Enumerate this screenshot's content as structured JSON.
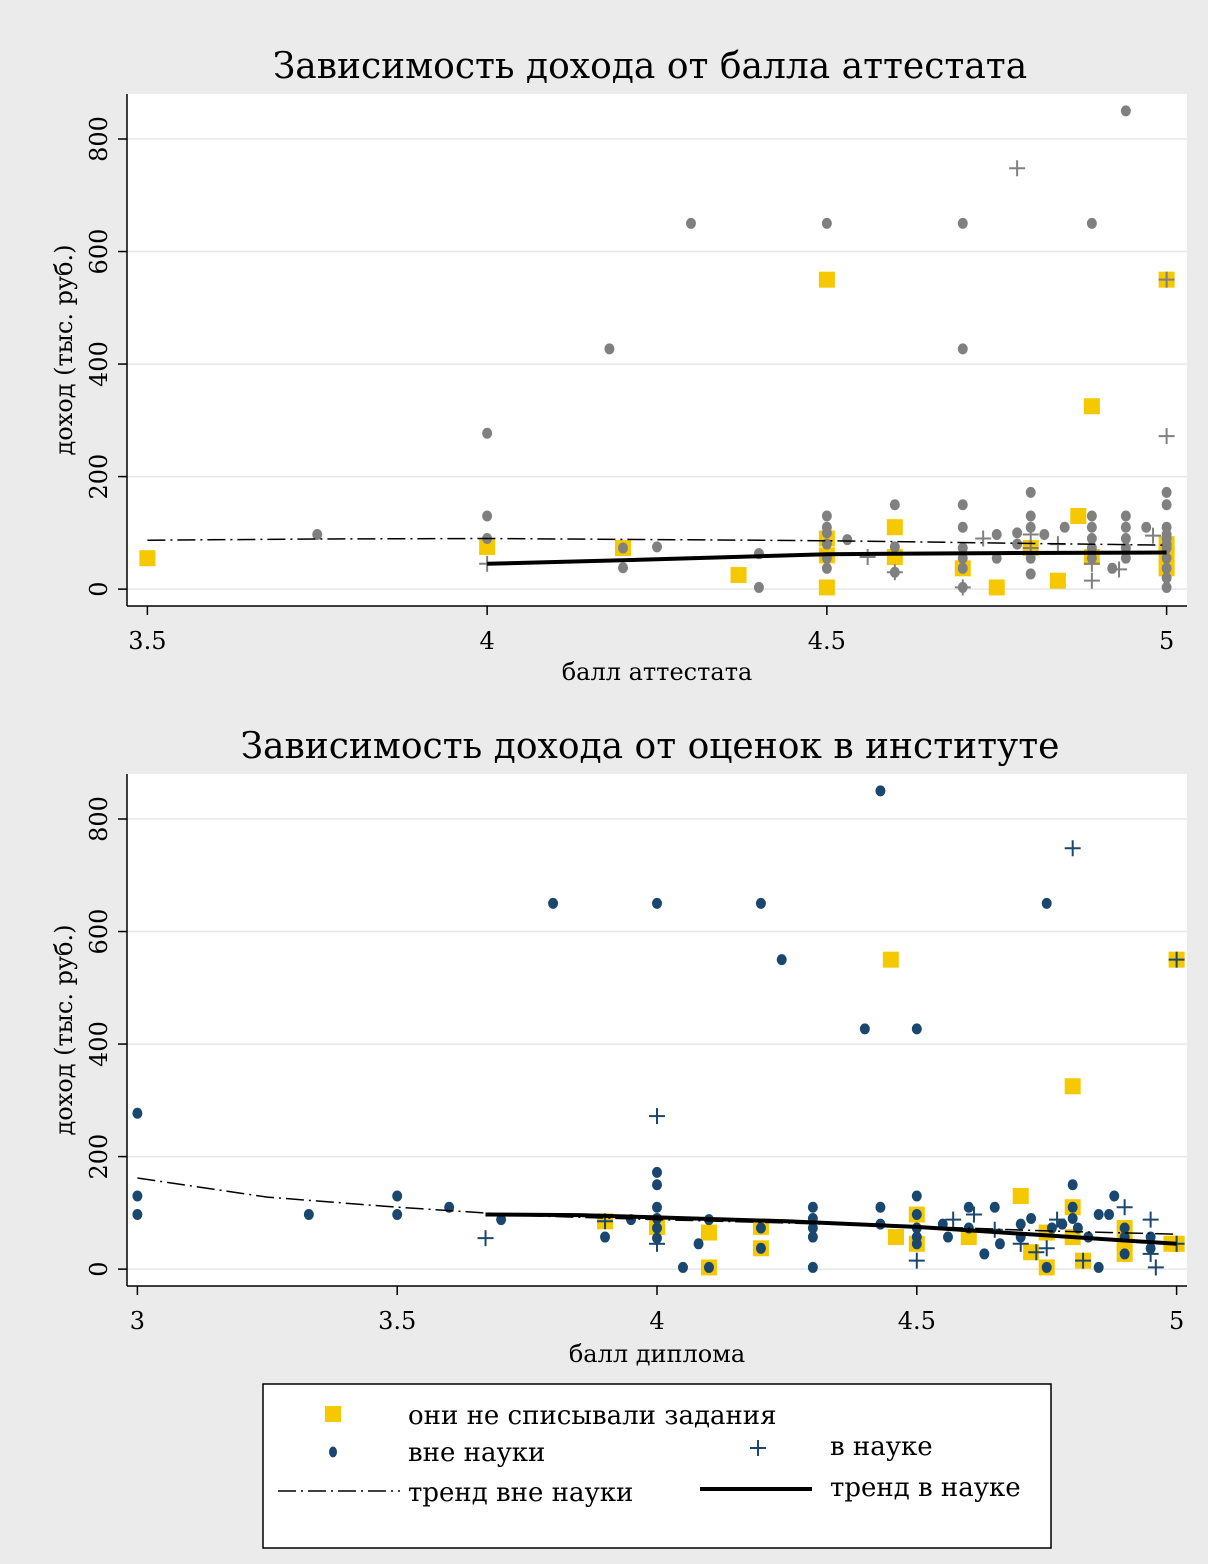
{
  "colors": {
    "background": "#ebebeb",
    "plot_bg": "#ffffff",
    "gray_points": "#808080",
    "navy_points": "#1a476f",
    "highlight": "#f5c800",
    "trend": "#000000"
  },
  "chart_data": [
    {
      "type": "scatter",
      "title": "Зависимость дохода от балла аттестата",
      "xlabel": "балл аттестата",
      "ylabel": "доход (тыс. руб.)",
      "xlim": [
        3.47,
        5.03
      ],
      "ylim": [
        -30,
        880
      ],
      "xticks": [
        "3.5",
        "4",
        "4.5",
        "5"
      ],
      "xtick_values": [
        3.5,
        4,
        4.5,
        5
      ],
      "yticks": [
        "0",
        "200",
        "400",
        "600",
        "800"
      ],
      "ytick_values": [
        0,
        200,
        400,
        600,
        800
      ],
      "point_color": "#808080",
      "outside_science": [
        [
          3.75,
          97
        ],
        [
          4,
          277
        ],
        [
          4,
          130
        ],
        [
          4,
          90
        ],
        [
          4.18,
          427
        ],
        [
          4.2,
          73
        ],
        [
          4.2,
          38
        ],
        [
          4.25,
          75
        ],
        [
          4.3,
          650
        ],
        [
          4.4,
          63
        ],
        [
          4.4,
          3
        ],
        [
          4.5,
          650
        ],
        [
          4.5,
          130
        ],
        [
          4.5,
          110
        ],
        [
          4.5,
          100
        ],
        [
          4.5,
          80
        ],
        [
          4.5,
          55
        ],
        [
          4.5,
          37
        ],
        [
          4.53,
          88
        ],
        [
          4.6,
          150
        ],
        [
          4.6,
          75
        ],
        [
          4.6,
          30
        ],
        [
          4.7,
          650
        ],
        [
          4.7,
          427
        ],
        [
          4.7,
          150
        ],
        [
          4.7,
          110
        ],
        [
          4.7,
          73
        ],
        [
          4.7,
          55
        ],
        [
          4.7,
          37
        ],
        [
          4.7,
          3
        ],
        [
          4.75,
          97
        ],
        [
          4.75,
          55
        ],
        [
          4.78,
          100
        ],
        [
          4.78,
          80
        ],
        [
          4.8,
          172
        ],
        [
          4.8,
          130
        ],
        [
          4.8,
          110
        ],
        [
          4.8,
          55
        ],
        [
          4.8,
          27
        ],
        [
          4.82,
          97
        ],
        [
          4.85,
          110
        ],
        [
          4.89,
          650
        ],
        [
          4.89,
          130
        ],
        [
          4.89,
          110
        ],
        [
          4.89,
          90
        ],
        [
          4.89,
          73
        ],
        [
          4.89,
          55
        ],
        [
          4.92,
          37
        ],
        [
          4.94,
          850
        ],
        [
          4.94,
          130
        ],
        [
          4.94,
          110
        ],
        [
          4.94,
          90
        ],
        [
          4.94,
          73
        ],
        [
          4.94,
          55
        ],
        [
          4.97,
          110
        ],
        [
          5,
          172
        ],
        [
          5,
          150
        ],
        [
          5,
          110
        ],
        [
          5,
          97
        ],
        [
          5,
          90
        ],
        [
          5,
          80
        ],
        [
          5,
          73
        ],
        [
          5,
          55
        ],
        [
          5,
          37
        ],
        [
          5,
          20
        ],
        [
          5,
          3
        ]
      ],
      "science": [
        [
          4,
          45
        ],
        [
          4.56,
          57
        ],
        [
          4.6,
          30
        ],
        [
          4.7,
          3
        ],
        [
          4.73,
          90
        ],
        [
          4.78,
          748
        ],
        [
          4.8,
          73
        ],
        [
          4.8,
          97
        ],
        [
          4.84,
          80
        ],
        [
          4.89,
          15
        ],
        [
          4.89,
          45
        ],
        [
          4.93,
          35
        ],
        [
          4.98,
          95
        ],
        [
          5,
          272
        ],
        [
          5,
          550
        ]
      ],
      "no_copying": [
        [
          3.5,
          55
        ],
        [
          4,
          75
        ],
        [
          4.2,
          73
        ],
        [
          4.37,
          25
        ],
        [
          4.5,
          550
        ],
        [
          4.5,
          90
        ],
        [
          4.5,
          60
        ],
        [
          4.5,
          3
        ],
        [
          4.6,
          110
        ],
        [
          4.6,
          57
        ],
        [
          4.7,
          37
        ],
        [
          4.75,
          3
        ],
        [
          4.8,
          73
        ],
        [
          4.84,
          15
        ],
        [
          4.87,
          130
        ],
        [
          4.89,
          325
        ],
        [
          4.89,
          57
        ],
        [
          5,
          550
        ],
        [
          5,
          80
        ],
        [
          5,
          60
        ],
        [
          5,
          37
        ]
      ],
      "trend_outside": [
        [
          3.5,
          87
        ],
        [
          3.75,
          89
        ],
        [
          4,
          90
        ],
        [
          4.25,
          88
        ],
        [
          4.5,
          86
        ],
        [
          4.75,
          82
        ],
        [
          5,
          78
        ]
      ],
      "trend_science": [
        [
          4,
          45
        ],
        [
          4.25,
          53
        ],
        [
          4.5,
          62
        ],
        [
          4.75,
          64
        ],
        [
          5,
          65
        ]
      ]
    },
    {
      "type": "scatter",
      "title": "Зависимость дохода от оценок в институте",
      "xlabel": "балл диплома",
      "ylabel": "доход (тыс. руб.)",
      "xlim": [
        2.98,
        5.02
      ],
      "ylim": [
        -30,
        880
      ],
      "xticks": [
        "3",
        "3.5",
        "4",
        "4.5",
        "5"
      ],
      "xtick_values": [
        3,
        3.5,
        4,
        4.5,
        5
      ],
      "yticks": [
        "0",
        "200",
        "400",
        "600",
        "800"
      ],
      "ytick_values": [
        0,
        200,
        400,
        600,
        800
      ],
      "point_color": "#1a476f",
      "outside_science": [
        [
          3,
          277
        ],
        [
          3,
          130
        ],
        [
          3,
          97
        ],
        [
          3.33,
          97
        ],
        [
          3.5,
          130
        ],
        [
          3.5,
          97
        ],
        [
          3.6,
          110
        ],
        [
          3.7,
          88
        ],
        [
          3.8,
          650
        ],
        [
          3.9,
          57
        ],
        [
          3.95,
          88
        ],
        [
          4,
          650
        ],
        [
          4,
          172
        ],
        [
          4,
          150
        ],
        [
          4,
          110
        ],
        [
          4,
          90
        ],
        [
          4,
          73
        ],
        [
          4,
          55
        ],
        [
          4.05,
          3
        ],
        [
          4.08,
          45
        ],
        [
          4.1,
          88
        ],
        [
          4.1,
          3
        ],
        [
          4.2,
          650
        ],
        [
          4.2,
          73
        ],
        [
          4.2,
          37
        ],
        [
          4.24,
          550
        ],
        [
          4.3,
          110
        ],
        [
          4.3,
          90
        ],
        [
          4.3,
          73
        ],
        [
          4.3,
          57
        ],
        [
          4.3,
          3
        ],
        [
          4.4,
          427
        ],
        [
          4.43,
          850
        ],
        [
          4.43,
          110
        ],
        [
          4.43,
          80
        ],
        [
          4.5,
          427
        ],
        [
          4.5,
          130
        ],
        [
          4.5,
          97
        ],
        [
          4.5,
          73
        ],
        [
          4.5,
          57
        ],
        [
          4.5,
          45
        ],
        [
          4.55,
          80
        ],
        [
          4.56,
          57
        ],
        [
          4.6,
          110
        ],
        [
          4.6,
          73
        ],
        [
          4.63,
          27
        ],
        [
          4.65,
          110
        ],
        [
          4.66,
          45
        ],
        [
          4.7,
          80
        ],
        [
          4.7,
          57
        ],
        [
          4.72,
          90
        ],
        [
          4.75,
          650
        ],
        [
          4.75,
          3
        ],
        [
          4.76,
          73
        ],
        [
          4.78,
          80
        ],
        [
          4.8,
          150
        ],
        [
          4.8,
          110
        ],
        [
          4.8,
          90
        ],
        [
          4.81,
          73
        ],
        [
          4.83,
          57
        ],
        [
          4.85,
          97
        ],
        [
          4.85,
          3
        ],
        [
          4.87,
          97
        ],
        [
          4.88,
          130
        ],
        [
          4.9,
          73
        ],
        [
          4.9,
          57
        ],
        [
          4.9,
          27
        ],
        [
          4.95,
          57
        ],
        [
          4.95,
          37
        ]
      ],
      "science": [
        [
          3.67,
          55
        ],
        [
          3.9,
          85
        ],
        [
          4,
          272
        ],
        [
          4,
          45
        ],
        [
          4.5,
          15
        ],
        [
          4.57,
          88
        ],
        [
          4.61,
          97
        ],
        [
          4.65,
          70
        ],
        [
          4.7,
          45
        ],
        [
          4.73,
          30
        ],
        [
          4.75,
          37
        ],
        [
          4.77,
          88
        ],
        [
          4.8,
          748
        ],
        [
          4.82,
          15
        ],
        [
          4.9,
          110
        ],
        [
          4.95,
          88
        ],
        [
          4.95,
          27
        ],
        [
          4.96,
          3
        ],
        [
          5,
          550
        ],
        [
          5,
          45
        ]
      ],
      "no_copying": [
        [
          3.9,
          85
        ],
        [
          4,
          75
        ],
        [
          4.1,
          65
        ],
        [
          4.1,
          3
        ],
        [
          4.2,
          75
        ],
        [
          4.2,
          37
        ],
        [
          4.45,
          550
        ],
        [
          4.46,
          57
        ],
        [
          4.5,
          97
        ],
        [
          4.5,
          45
        ],
        [
          4.6,
          57
        ],
        [
          4.7,
          130
        ],
        [
          4.72,
          30
        ],
        [
          4.75,
          3
        ],
        [
          4.75,
          65
        ],
        [
          4.8,
          325
        ],
        [
          4.8,
          110
        ],
        [
          4.8,
          57
        ],
        [
          4.82,
          15
        ],
        [
          4.9,
          73
        ],
        [
          4.9,
          45
        ],
        [
          4.9,
          27
        ],
        [
          4.99,
          45
        ],
        [
          5,
          550
        ],
        [
          5,
          45
        ]
      ],
      "trend_outside": [
        [
          3,
          162
        ],
        [
          3.25,
          128
        ],
        [
          3.5,
          110
        ],
        [
          3.75,
          95
        ],
        [
          4,
          88
        ],
        [
          4.25,
          82
        ],
        [
          4.5,
          76
        ],
        [
          4.75,
          68
        ],
        [
          5,
          62
        ]
      ],
      "trend_science": [
        [
          3.67,
          97
        ],
        [
          3.85,
          96
        ],
        [
          4,
          92
        ],
        [
          4.25,
          85
        ],
        [
          4.5,
          75
        ],
        [
          4.75,
          60
        ],
        [
          5,
          45
        ]
      ]
    }
  ],
  "legend": {
    "no_copying": "они не списывали задания",
    "outside_science": "вне науки",
    "science": "в науке",
    "trend_outside": "тренд вне науки",
    "trend_science": "тренд в науке"
  }
}
